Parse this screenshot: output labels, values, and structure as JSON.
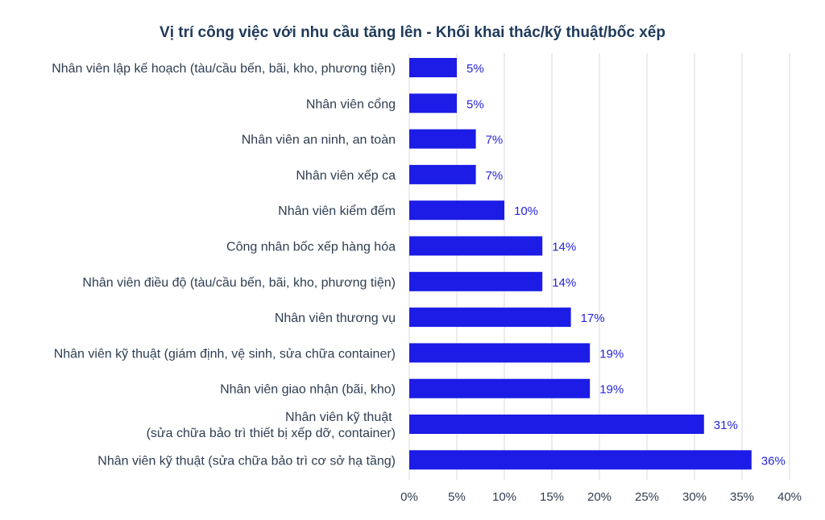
{
  "chart_data": {
    "type": "bar",
    "orientation": "horizontal",
    "title": "Vị trí công việc với nhu cầu tăng lên - Khối khai thác/kỹ thuật/bốc xếp",
    "categories": [
      "Nhân viên lập kế hoạch (tàu/cầu bến, bãi, kho, phương tiện)",
      "Nhân viên cổng",
      "Nhân viên an ninh, an toàn",
      "Nhân viên xếp ca",
      "Nhân viên kiểm đếm",
      "Công nhân bốc xếp hàng hóa",
      "Nhân viên điều độ (tàu/cầu bến, bãi, kho, phương tiện)",
      "Nhân viên thương vụ",
      "Nhân viên kỹ thuật (giám định, vệ sinh, sửa chữa container)",
      "Nhân viên giao nhận (bãi, kho)",
      "Nhân viên kỹ thuật \n(sửa chữa bảo trì thiết bị xếp dỡ, container)",
      "Nhân viên kỹ thuật (sửa chữa bảo trì cơ sở hạ tầng)"
    ],
    "values": [
      5,
      5,
      7,
      7,
      10,
      14,
      14,
      17,
      19,
      19,
      31,
      36
    ],
    "value_labels": [
      "5%",
      "5%",
      "7%",
      "7%",
      "10%",
      "14%",
      "14%",
      "17%",
      "19%",
      "19%",
      "31%",
      "36%"
    ],
    "xticks": [
      "0%",
      "5%",
      "10%",
      "15%",
      "20%",
      "25%",
      "30%",
      "35%",
      "40%"
    ],
    "xlim": [
      0,
      40
    ],
    "grid": true,
    "bar_color": "#1c1ce6",
    "value_label_color": "#2525d8",
    "title_color": "#1f3a5a"
  }
}
